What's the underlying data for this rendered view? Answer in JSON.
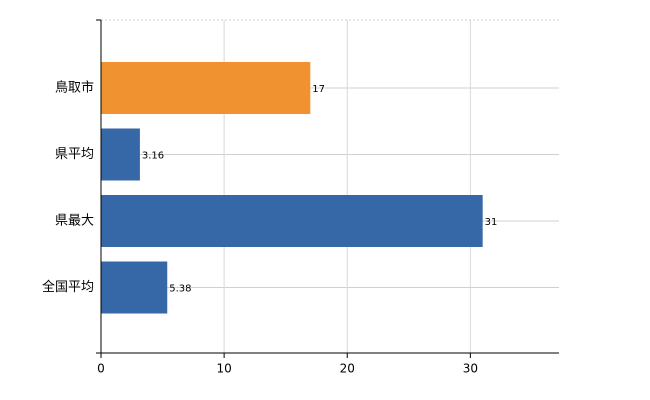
{
  "chart_data": {
    "type": "bar",
    "orientation": "horizontal",
    "categories": [
      "鳥取市",
      "県平均",
      "県最大",
      "全国平均"
    ],
    "values": [
      17,
      3.16,
      31,
      5.38
    ],
    "colors": [
      "#f0922f",
      "#3667a6",
      "#3667a6",
      "#3667a6"
    ],
    "xlim": [
      0,
      37.2
    ],
    "xticks": [
      0,
      10,
      20,
      30
    ],
    "grid": true
  }
}
